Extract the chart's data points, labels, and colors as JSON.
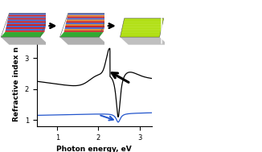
{
  "xlabel": "Photon energy, eV",
  "ylabel": "Refractive index n",
  "xlim": [
    0.5,
    3.3
  ],
  "ylim": [
    0.8,
    3.5
  ],
  "yticks": [
    1,
    2,
    3
  ],
  "xticks": [
    1,
    2,
    3
  ],
  "background_color": "#ffffff",
  "figsize": [
    3.26,
    1.89
  ],
  "dpi": 100,
  "film1_stripe_colors": [
    "#cc2222",
    "#4466cc",
    "#cc2222",
    "#4466cc",
    "#cc2222",
    "#4466cc",
    "#cc2222",
    "#4466cc",
    "#cc2222",
    "#4466cc",
    "#cc2222",
    "#4466cc"
  ],
  "film2_stripe_colors": [
    "#cc2222",
    "#dd8833",
    "#4466cc",
    "#cc2222",
    "#dd8833",
    "#4466cc",
    "#cc2222",
    "#dd8833",
    "#4466cc",
    "#cc2222",
    "#dd8833",
    "#4466cc"
  ],
  "film3_stripe_colors": [
    "#aadd00",
    "#aadd00",
    "#aadd00",
    "#aadd00",
    "#aadd00",
    "#aadd00",
    "#aadd00",
    "#aadd00",
    "#aadd00",
    "#aadd00",
    "#aadd00",
    "#aadd00"
  ],
  "sem_bg1": "#7a8a8a",
  "sem_bg2": "#8a9898",
  "inset_bg1": "#5a6a6a",
  "inset_bg2": "#6a7878"
}
